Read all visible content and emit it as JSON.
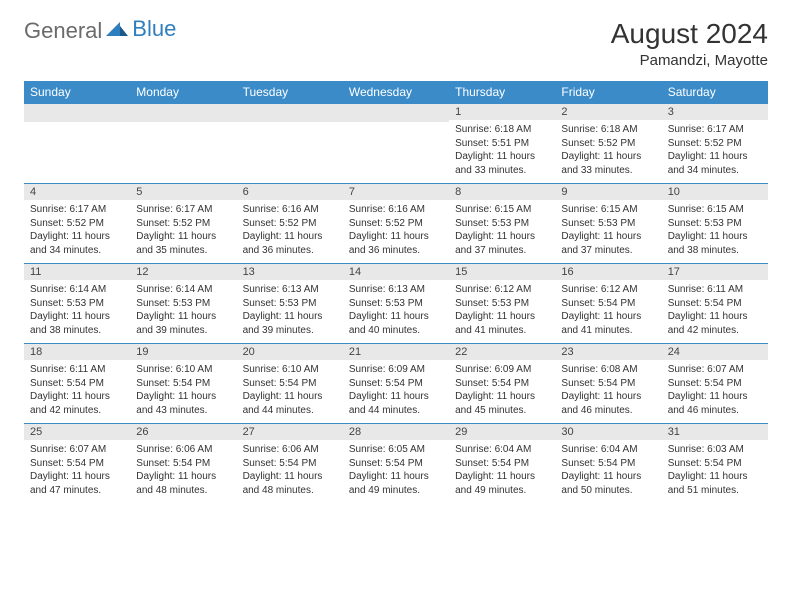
{
  "brand": {
    "part1": "General",
    "part2": "Blue"
  },
  "title": "August 2024",
  "location": "Pamandzi, Mayotte",
  "colors": {
    "header_bg": "#3b8bc9",
    "header_fg": "#ffffff",
    "daynum_bg": "#e8e8e8",
    "border": "#3b8bc9",
    "logo_gray": "#6b6b6b",
    "logo_blue": "#2f7fbf",
    "text": "#333333",
    "background": "#ffffff"
  },
  "typography": {
    "title_fontsize": 28,
    "location_fontsize": 15,
    "header_fontsize": 12,
    "daynum_fontsize": 11,
    "cell_fontsize": 10
  },
  "day_headers": [
    "Sunday",
    "Monday",
    "Tuesday",
    "Wednesday",
    "Thursday",
    "Friday",
    "Saturday"
  ],
  "weeks": [
    [
      {
        "empty": true
      },
      {
        "empty": true
      },
      {
        "empty": true
      },
      {
        "empty": true
      },
      {
        "num": "1",
        "sunrise": "Sunrise: 6:18 AM",
        "sunset": "Sunset: 5:51 PM",
        "daylight": "Daylight: 11 hours and 33 minutes."
      },
      {
        "num": "2",
        "sunrise": "Sunrise: 6:18 AM",
        "sunset": "Sunset: 5:52 PM",
        "daylight": "Daylight: 11 hours and 33 minutes."
      },
      {
        "num": "3",
        "sunrise": "Sunrise: 6:17 AM",
        "sunset": "Sunset: 5:52 PM",
        "daylight": "Daylight: 11 hours and 34 minutes."
      }
    ],
    [
      {
        "num": "4",
        "sunrise": "Sunrise: 6:17 AM",
        "sunset": "Sunset: 5:52 PM",
        "daylight": "Daylight: 11 hours and 34 minutes."
      },
      {
        "num": "5",
        "sunrise": "Sunrise: 6:17 AM",
        "sunset": "Sunset: 5:52 PM",
        "daylight": "Daylight: 11 hours and 35 minutes."
      },
      {
        "num": "6",
        "sunrise": "Sunrise: 6:16 AM",
        "sunset": "Sunset: 5:52 PM",
        "daylight": "Daylight: 11 hours and 36 minutes."
      },
      {
        "num": "7",
        "sunrise": "Sunrise: 6:16 AM",
        "sunset": "Sunset: 5:52 PM",
        "daylight": "Daylight: 11 hours and 36 minutes."
      },
      {
        "num": "8",
        "sunrise": "Sunrise: 6:15 AM",
        "sunset": "Sunset: 5:53 PM",
        "daylight": "Daylight: 11 hours and 37 minutes."
      },
      {
        "num": "9",
        "sunrise": "Sunrise: 6:15 AM",
        "sunset": "Sunset: 5:53 PM",
        "daylight": "Daylight: 11 hours and 37 minutes."
      },
      {
        "num": "10",
        "sunrise": "Sunrise: 6:15 AM",
        "sunset": "Sunset: 5:53 PM",
        "daylight": "Daylight: 11 hours and 38 minutes."
      }
    ],
    [
      {
        "num": "11",
        "sunrise": "Sunrise: 6:14 AM",
        "sunset": "Sunset: 5:53 PM",
        "daylight": "Daylight: 11 hours and 38 minutes."
      },
      {
        "num": "12",
        "sunrise": "Sunrise: 6:14 AM",
        "sunset": "Sunset: 5:53 PM",
        "daylight": "Daylight: 11 hours and 39 minutes."
      },
      {
        "num": "13",
        "sunrise": "Sunrise: 6:13 AM",
        "sunset": "Sunset: 5:53 PM",
        "daylight": "Daylight: 11 hours and 39 minutes."
      },
      {
        "num": "14",
        "sunrise": "Sunrise: 6:13 AM",
        "sunset": "Sunset: 5:53 PM",
        "daylight": "Daylight: 11 hours and 40 minutes."
      },
      {
        "num": "15",
        "sunrise": "Sunrise: 6:12 AM",
        "sunset": "Sunset: 5:53 PM",
        "daylight": "Daylight: 11 hours and 41 minutes."
      },
      {
        "num": "16",
        "sunrise": "Sunrise: 6:12 AM",
        "sunset": "Sunset: 5:54 PM",
        "daylight": "Daylight: 11 hours and 41 minutes."
      },
      {
        "num": "17",
        "sunrise": "Sunrise: 6:11 AM",
        "sunset": "Sunset: 5:54 PM",
        "daylight": "Daylight: 11 hours and 42 minutes."
      }
    ],
    [
      {
        "num": "18",
        "sunrise": "Sunrise: 6:11 AM",
        "sunset": "Sunset: 5:54 PM",
        "daylight": "Daylight: 11 hours and 42 minutes."
      },
      {
        "num": "19",
        "sunrise": "Sunrise: 6:10 AM",
        "sunset": "Sunset: 5:54 PM",
        "daylight": "Daylight: 11 hours and 43 minutes."
      },
      {
        "num": "20",
        "sunrise": "Sunrise: 6:10 AM",
        "sunset": "Sunset: 5:54 PM",
        "daylight": "Daylight: 11 hours and 44 minutes."
      },
      {
        "num": "21",
        "sunrise": "Sunrise: 6:09 AM",
        "sunset": "Sunset: 5:54 PM",
        "daylight": "Daylight: 11 hours and 44 minutes."
      },
      {
        "num": "22",
        "sunrise": "Sunrise: 6:09 AM",
        "sunset": "Sunset: 5:54 PM",
        "daylight": "Daylight: 11 hours and 45 minutes."
      },
      {
        "num": "23",
        "sunrise": "Sunrise: 6:08 AM",
        "sunset": "Sunset: 5:54 PM",
        "daylight": "Daylight: 11 hours and 46 minutes."
      },
      {
        "num": "24",
        "sunrise": "Sunrise: 6:07 AM",
        "sunset": "Sunset: 5:54 PM",
        "daylight": "Daylight: 11 hours and 46 minutes."
      }
    ],
    [
      {
        "num": "25",
        "sunrise": "Sunrise: 6:07 AM",
        "sunset": "Sunset: 5:54 PM",
        "daylight": "Daylight: 11 hours and 47 minutes."
      },
      {
        "num": "26",
        "sunrise": "Sunrise: 6:06 AM",
        "sunset": "Sunset: 5:54 PM",
        "daylight": "Daylight: 11 hours and 48 minutes."
      },
      {
        "num": "27",
        "sunrise": "Sunrise: 6:06 AM",
        "sunset": "Sunset: 5:54 PM",
        "daylight": "Daylight: 11 hours and 48 minutes."
      },
      {
        "num": "28",
        "sunrise": "Sunrise: 6:05 AM",
        "sunset": "Sunset: 5:54 PM",
        "daylight": "Daylight: 11 hours and 49 minutes."
      },
      {
        "num": "29",
        "sunrise": "Sunrise: 6:04 AM",
        "sunset": "Sunset: 5:54 PM",
        "daylight": "Daylight: 11 hours and 49 minutes."
      },
      {
        "num": "30",
        "sunrise": "Sunrise: 6:04 AM",
        "sunset": "Sunset: 5:54 PM",
        "daylight": "Daylight: 11 hours and 50 minutes."
      },
      {
        "num": "31",
        "sunrise": "Sunrise: 6:03 AM",
        "sunset": "Sunset: 5:54 PM",
        "daylight": "Daylight: 11 hours and 51 minutes."
      }
    ]
  ]
}
